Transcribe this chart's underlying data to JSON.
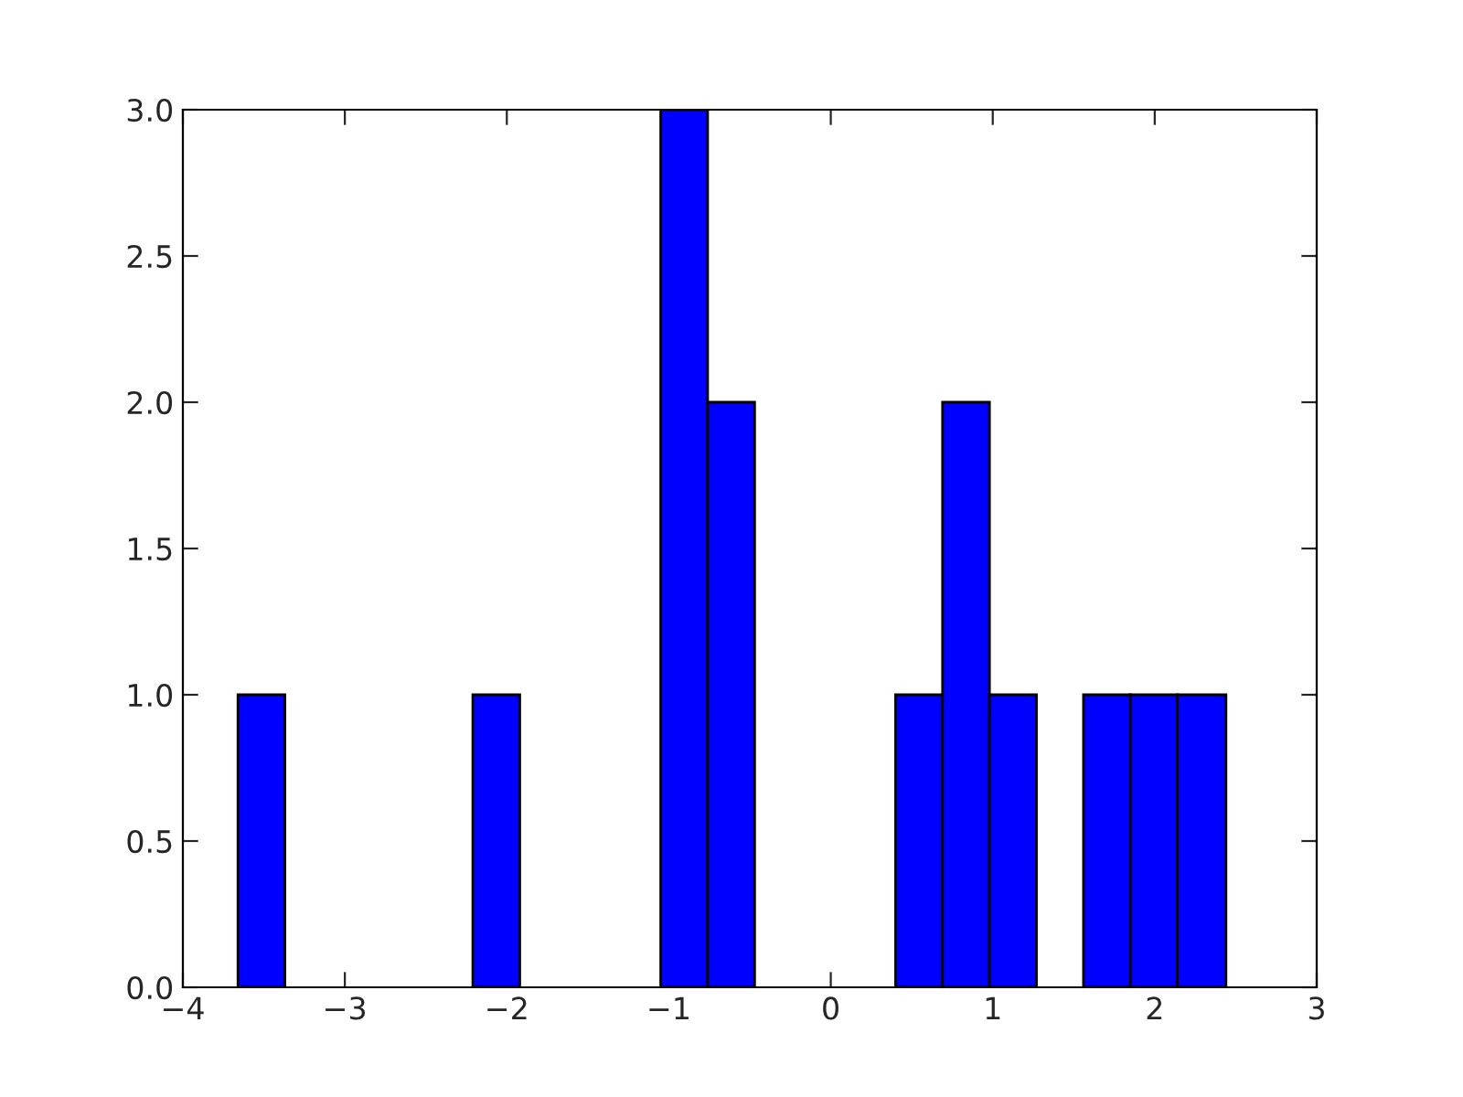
{
  "chart_data": {
    "type": "histogram",
    "bins": [
      -3.66,
      -3.37,
      -2.21,
      -1.92,
      -1.05,
      -0.76,
      -0.47,
      0.4,
      0.69,
      0.98,
      1.27,
      1.56,
      1.85,
      2.14,
      2.44
    ],
    "values": [
      1,
      0,
      1,
      0,
      3,
      2,
      0,
      1,
      2,
      1,
      0,
      1,
      1,
      1
    ],
    "color": "#0000ff",
    "xlim": [
      -4,
      3
    ],
    "xticks": [
      {
        "value": -4,
        "label": "−4"
      },
      {
        "value": -3,
        "label": "−3"
      },
      {
        "value": -2,
        "label": "−2"
      },
      {
        "value": -1,
        "label": "−1"
      },
      0,
      1,
      2,
      3
    ],
    "ylim": [
      0,
      3
    ],
    "yticks": [
      {
        "value": 0,
        "label": "0.0"
      },
      {
        "value": 0.5,
        "label": "0.5"
      },
      {
        "value": 1,
        "label": "1.0"
      },
      {
        "value": 1.5,
        "label": "1.5"
      },
      {
        "value": 2,
        "label": "2.0"
      },
      {
        "value": 2.5,
        "label": "2.5"
      },
      {
        "value": 3,
        "label": "3.0"
      }
    ],
    "grid": false
  }
}
